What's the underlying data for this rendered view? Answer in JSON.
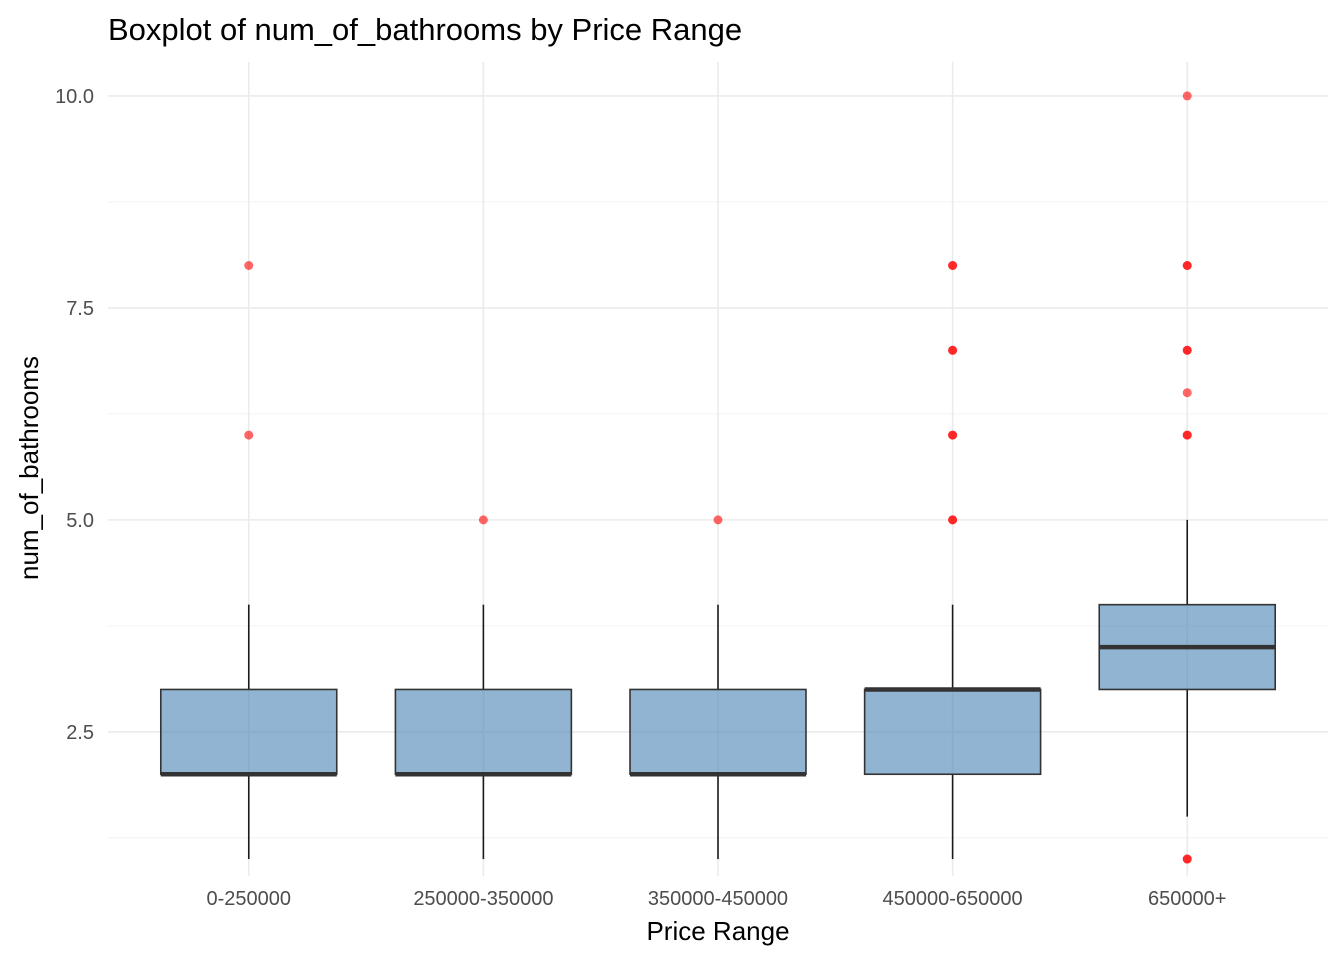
{
  "chart_data": {
    "type": "boxplot",
    "title": "Boxplot of num_of_bathrooms by Price Range",
    "xlabel": "Price Range",
    "ylabel": "num_of_bathrooms",
    "ylim": [
      0.8,
      10.4
    ],
    "y_ticks": [
      2.5,
      5.0,
      7.5,
      10.0
    ],
    "y_tick_labels": [
      "2.5",
      "5.0",
      "7.5",
      "10.0"
    ],
    "y_minor_ticks": [
      1.25,
      3.75,
      6.25,
      8.75
    ],
    "grid": true,
    "legend": "none",
    "colors": {
      "box_fill": "#4682b4",
      "outlier": "#ff0000",
      "line": "#333333"
    },
    "categories": [
      "0-250000",
      "250000-350000",
      "350000-450000",
      "450000-650000",
      "650000+"
    ],
    "boxes": [
      {
        "category": "0-250000",
        "whisker_low": 1,
        "q1": 2,
        "median": 2,
        "q3": 3,
        "whisker_high": 4,
        "outliers": [
          6,
          8
        ]
      },
      {
        "category": "250000-350000",
        "whisker_low": 1,
        "q1": 2,
        "median": 2,
        "q3": 3,
        "whisker_high": 4,
        "outliers": [
          5
        ]
      },
      {
        "category": "350000-450000",
        "whisker_low": 1,
        "q1": 2,
        "median": 2,
        "q3": 3,
        "whisker_high": 4,
        "outliers": [
          5
        ]
      },
      {
        "category": "450000-650000",
        "whisker_low": 1,
        "q1": 2,
        "median": 3,
        "q3": 3,
        "whisker_high": 4,
        "outliers": [
          5,
          5,
          6,
          6,
          7,
          7,
          8,
          8
        ]
      },
      {
        "category": "650000+",
        "whisker_low": 1.5,
        "q1": 3,
        "median": 3.5,
        "q3": 4,
        "whisker_high": 5,
        "outliers": [
          1,
          1,
          6,
          6,
          6.5,
          7,
          7,
          8,
          8,
          10
        ]
      }
    ]
  }
}
